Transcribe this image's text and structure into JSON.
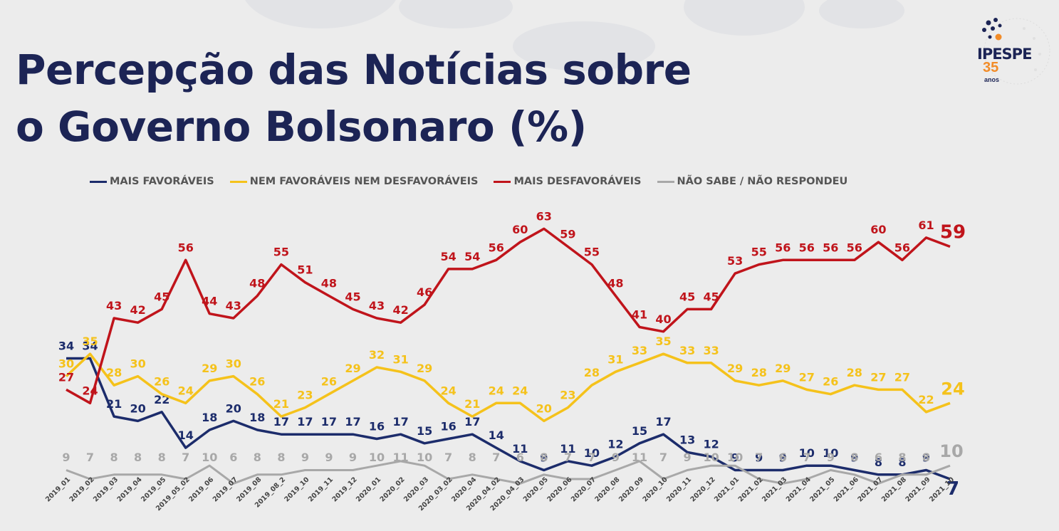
{
  "title_line1": "Percepção das Notícias sobre",
  "title_line2": "o Governo Bolsonaro (%)",
  "logo": {
    "brand": "IPESPE",
    "years": "35",
    "anos": "anos"
  },
  "colors": {
    "title": "#1c2455",
    "fav": "#1c2c6b",
    "neutral": "#f5c21b",
    "desfav": "#c0141b",
    "ns": "#a8a8a8"
  },
  "chart_data": {
    "type": "line",
    "title": "Percepção das Notícias sobre o Governo Bolsonaro (%)",
    "legend_position": "top",
    "grid": false,
    "categories": [
      "2019_01",
      "2019_02",
      "2019_03",
      "2019_04",
      "2019_05",
      "2019_05_02",
      "2019_06",
      "2019_07",
      "2019_08",
      "2019_08_2",
      "2019_10",
      "2019_11",
      "2019_12",
      "2020_01",
      "2020_02",
      "2020_03",
      "2020_03_02",
      "2020_04",
      "2020_04_02",
      "2020_04_03",
      "2020_05",
      "2020_06",
      "2020_07",
      "2020_08",
      "2020_09",
      "2020_10",
      "2020_11",
      "2020_12",
      "2021_01",
      "2021_02",
      "2021_03",
      "2021_04",
      "2021_05",
      "2021_06",
      "2021_07",
      "2021_08",
      "2021_09",
      "2021_10"
    ],
    "series": [
      {
        "name": "MAIS FAVORÁVEIS",
        "color": "#1c2c6b",
        "values": [
          34,
          34,
          21,
          20,
          22,
          14,
          18,
          20,
          18,
          17,
          17,
          17,
          17,
          16,
          17,
          15,
          16,
          17,
          14,
          11,
          9,
          11,
          10,
          12,
          15,
          17,
          13,
          12,
          9,
          9,
          9,
          10,
          10,
          9,
          8,
          8,
          9,
          7
        ]
      },
      {
        "name": "NEM FAVORÁVEIS NEM DESFAVORÁVEIS",
        "color": "#f5c21b",
        "values": [
          30,
          35,
          28,
          30,
          26,
          24,
          29,
          30,
          26,
          21,
          23,
          26,
          29,
          32,
          31,
          29,
          24,
          21,
          24,
          24,
          20,
          23,
          28,
          31,
          33,
          35,
          33,
          33,
          29,
          28,
          29,
          27,
          26,
          28,
          27,
          27,
          22,
          24
        ]
      },
      {
        "name": "MAIS DESFAVORÁVEIS",
        "color": "#c0141b",
        "values": [
          27,
          24,
          43,
          42,
          45,
          56,
          44,
          43,
          48,
          55,
          51,
          48,
          45,
          43,
          42,
          46,
          54,
          54,
          56,
          60,
          63,
          59,
          55,
          48,
          41,
          40,
          45,
          45,
          53,
          55,
          56,
          56,
          56,
          56,
          60,
          56,
          61,
          59
        ]
      },
      {
        "name": "NÃO SABE / NÃO RESPONDEU",
        "color": "#a8a8a8",
        "values": [
          9,
          7,
          8,
          8,
          8,
          7,
          10,
          6,
          8,
          8,
          9,
          9,
          9,
          10,
          11,
          10,
          7,
          8,
          7,
          6,
          8,
          7,
          7,
          9,
          11,
          7,
          9,
          10,
          10,
          7,
          6,
          7,
          9,
          8,
          6,
          8,
          8,
          10
        ]
      }
    ]
  }
}
